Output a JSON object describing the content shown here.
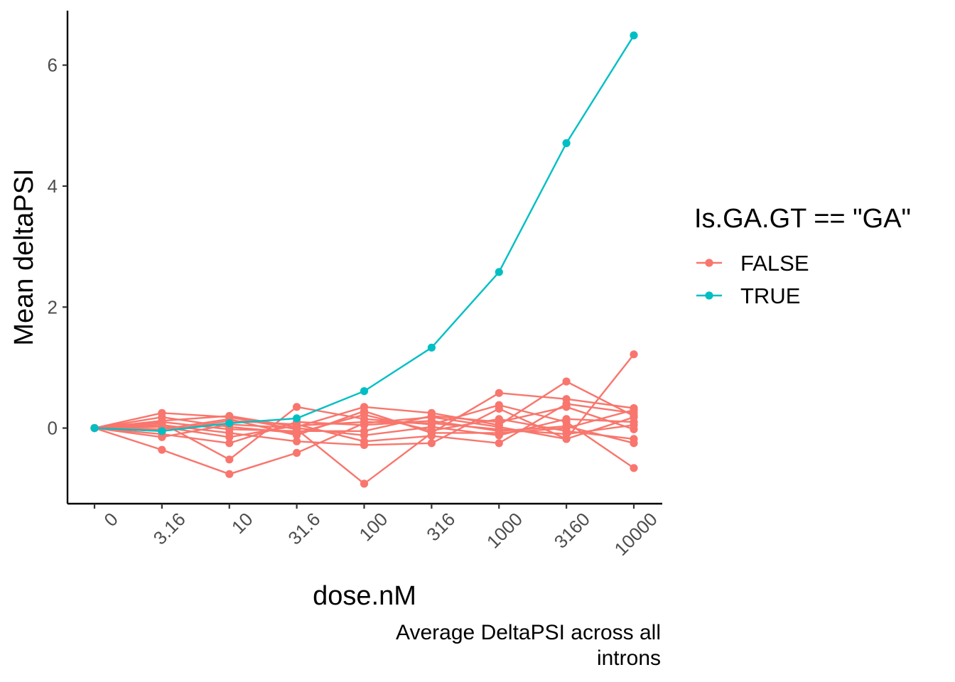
{
  "chart_data": {
    "type": "line",
    "title": "",
    "xlabel": "dose.nM",
    "ylabel": "Mean deltaPSI",
    "caption_lines": [
      "Average DeltaPSI across all",
      "introns"
    ],
    "x_categories": [
      "0",
      "3.16",
      "10",
      "31.6",
      "100",
      "316",
      "1000",
      "3160",
      "10000"
    ],
    "y_ticks": [
      0,
      2,
      4,
      6
    ],
    "ylim": [
      -1.25,
      6.9
    ],
    "grid": false,
    "legend": {
      "title": "Is.GA.GT == \"GA\"",
      "placement": "right",
      "entries": [
        {
          "label": "FALSE",
          "color": "#F8766D"
        },
        {
          "label": "TRUE",
          "color": "#00BFC4"
        }
      ]
    },
    "series": [
      {
        "group": "TRUE",
        "values": [
          0,
          -0.05,
          0.08,
          0.16,
          0.61,
          1.33,
          2.58,
          4.71,
          6.49
        ]
      },
      {
        "group": "FALSE",
        "values": [
          0,
          0.25,
          0.18,
          -0.02,
          -0.92,
          -0.08,
          0.58,
          0.48,
          0.33
        ]
      },
      {
        "group": "FALSE",
        "values": [
          0,
          -0.36,
          -0.76,
          -0.41,
          0.08,
          0.18,
          0.02,
          -0.18,
          1.22
        ]
      },
      {
        "group": "FALSE",
        "values": [
          0,
          0.12,
          0.2,
          0.02,
          0.35,
          0.25,
          0.05,
          0.77,
          0.2
        ]
      },
      {
        "group": "FALSE",
        "values": [
          0,
          0.08,
          -0.52,
          0.35,
          0.15,
          0.06,
          0.38,
          0.1,
          -0.66
        ]
      },
      {
        "group": "FALSE",
        "values": [
          0,
          -0.05,
          0.12,
          0.06,
          -0.22,
          -0.13,
          -0.25,
          0.4,
          0.25
        ]
      },
      {
        "group": "FALSE",
        "values": [
          0,
          0.05,
          -0.08,
          -0.22,
          -0.28,
          -0.25,
          0.32,
          -0.18,
          0.18
        ]
      },
      {
        "group": "FALSE",
        "values": [
          0,
          -0.1,
          -0.25,
          0.1,
          0.05,
          0.12,
          -0.05,
          0.03,
          -0.25
        ]
      },
      {
        "group": "FALSE",
        "values": [
          0,
          0.18,
          0.02,
          -0.08,
          0.22,
          -0.04,
          0.15,
          -0.05,
          -0.18
        ]
      },
      {
        "group": "FALSE",
        "values": [
          0,
          -0.15,
          0.06,
          0.0,
          -0.12,
          0.02,
          -0.12,
          0.15,
          0.1
        ]
      },
      {
        "group": "FALSE",
        "values": [
          0,
          0.02,
          -0.15,
          0.04,
          0.1,
          0.08,
          -0.02,
          -0.1,
          0.05
        ]
      },
      {
        "group": "FALSE",
        "values": [
          0,
          0.1,
          -0.02,
          -0.05,
          -0.05,
          0.2,
          0.1,
          0.35,
          -0.02
        ]
      },
      {
        "group": "FALSE",
        "values": [
          0,
          -0.02,
          0.15,
          -0.12,
          0.28,
          -0.08,
          -0.08,
          0.0,
          0.3
        ]
      }
    ]
  }
}
